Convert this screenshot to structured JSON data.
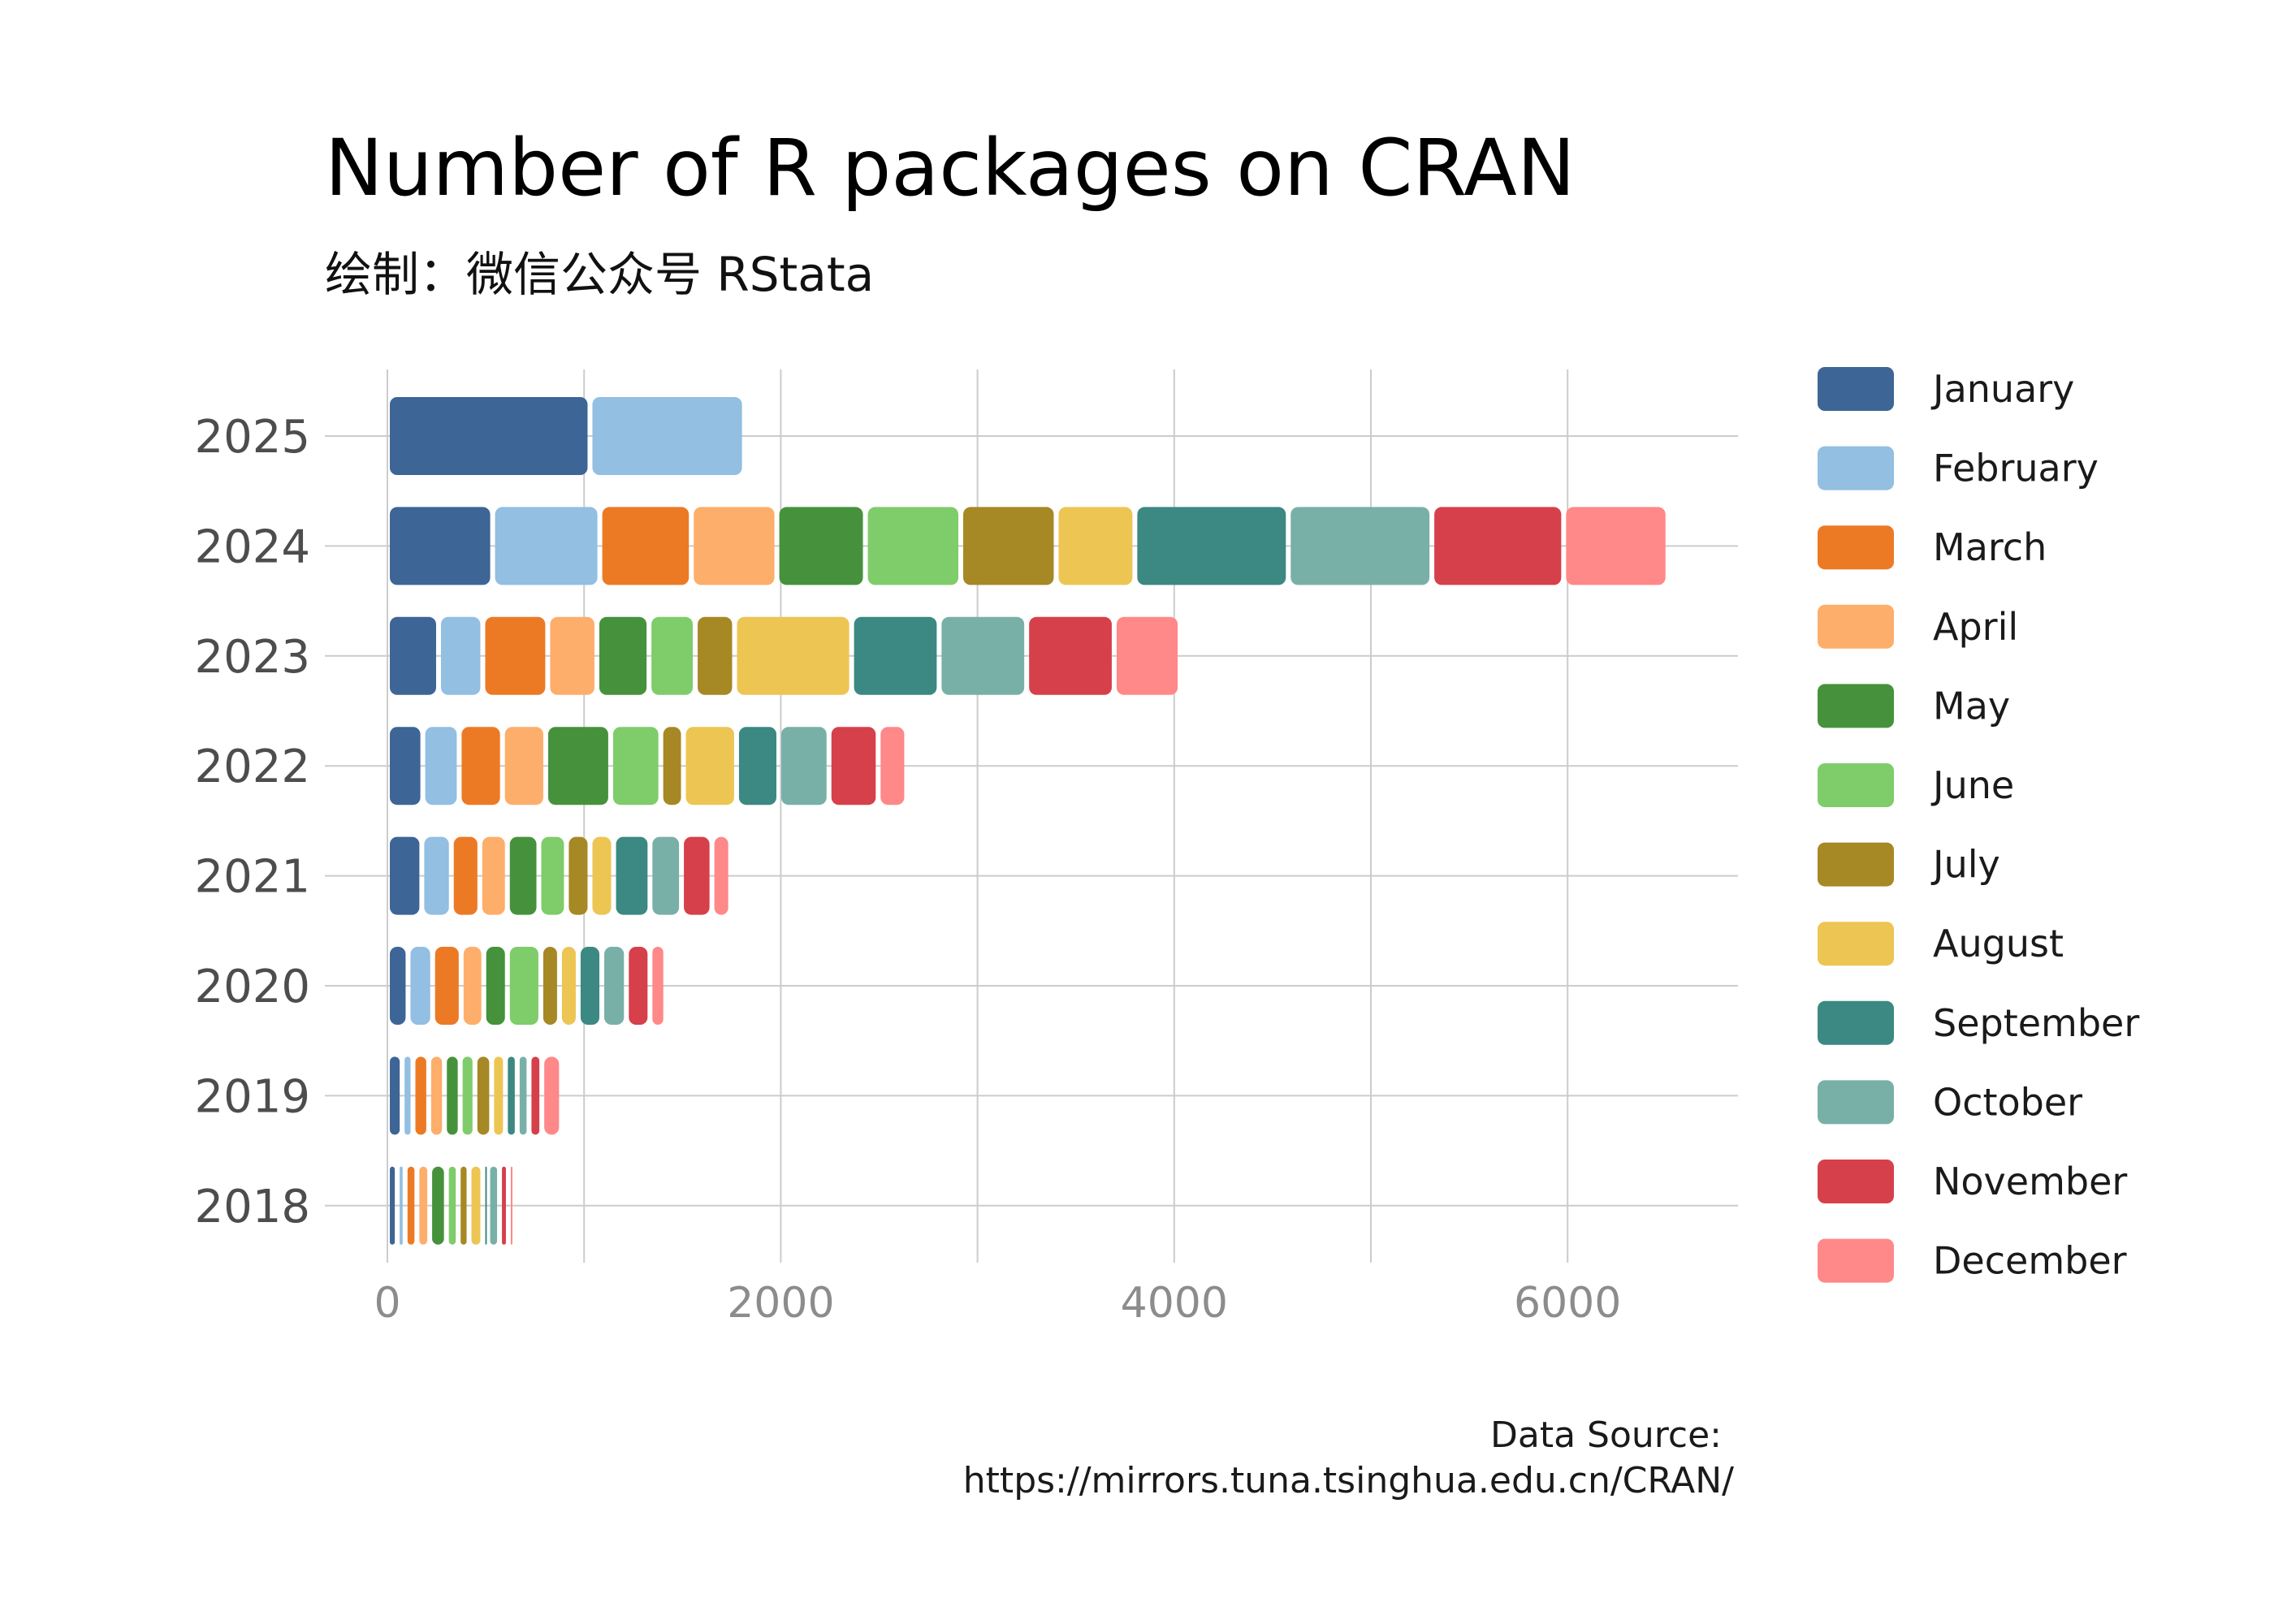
{
  "chart_data": {
    "type": "bar",
    "orientation": "horizontal",
    "stacked": true,
    "title": "Number of R packages on CRAN",
    "subtitle": "绘制：微信公众号 RStata",
    "caption_lines": [
      "Data Source:",
      "https://mirrors.tuna.tsinghua.edu.cn/CRAN/"
    ],
    "categories": [
      "2025",
      "2024",
      "2023",
      "2022",
      "2021",
      "2020",
      "2019",
      "2018"
    ],
    "x_ticks": [
      0,
      2000,
      4000,
      6000
    ],
    "xlim": [
      0,
      6850
    ],
    "grid": true,
    "legend_position": "right",
    "series": [
      {
        "name": "January",
        "color": "#3D6596",
        "values": [
          1030,
          535,
          260,
          180,
          175,
          105,
          75,
          50
        ]
      },
      {
        "name": "February",
        "color": "#92BFE2",
        "values": [
          785,
          545,
          225,
          185,
          150,
          125,
          55,
          40
        ]
      },
      {
        "name": "March",
        "color": "#EC7A25",
        "values": [
          0,
          465,
          330,
          220,
          145,
          145,
          80,
          60
        ]
      },
      {
        "name": "April",
        "color": "#FDAE6B",
        "values": [
          0,
          435,
          250,
          220,
          140,
          115,
          80,
          65
        ]
      },
      {
        "name": "May",
        "color": "#46923C",
        "values": [
          0,
          450,
          265,
          330,
          160,
          120,
          80,
          85
        ]
      },
      {
        "name": "June",
        "color": "#7FCC6B",
        "values": [
          0,
          485,
          235,
          255,
          140,
          170,
          75,
          60
        ]
      },
      {
        "name": "July",
        "color": "#A68825",
        "values": [
          0,
          485,
          200,
          115,
          120,
          95,
          85,
          55
        ]
      },
      {
        "name": "August",
        "color": "#EDC553",
        "values": [
          0,
          400,
          595,
          270,
          120,
          95,
          70,
          70
        ]
      },
      {
        "name": "September",
        "color": "#3C8882",
        "values": [
          0,
          780,
          445,
          215,
          185,
          120,
          60,
          25
        ]
      },
      {
        "name": "October",
        "color": "#78B0A8",
        "values": [
          0,
          730,
          445,
          255,
          160,
          125,
          60,
          60
        ]
      },
      {
        "name": "November",
        "color": "#D6404A",
        "values": [
          0,
          670,
          445,
          250,
          155,
          120,
          65,
          45
        ]
      },
      {
        "name": "December",
        "color": "#FF8888",
        "values": [
          0,
          530,
          335,
          145,
          95,
          80,
          100,
          30
        ]
      }
    ]
  }
}
